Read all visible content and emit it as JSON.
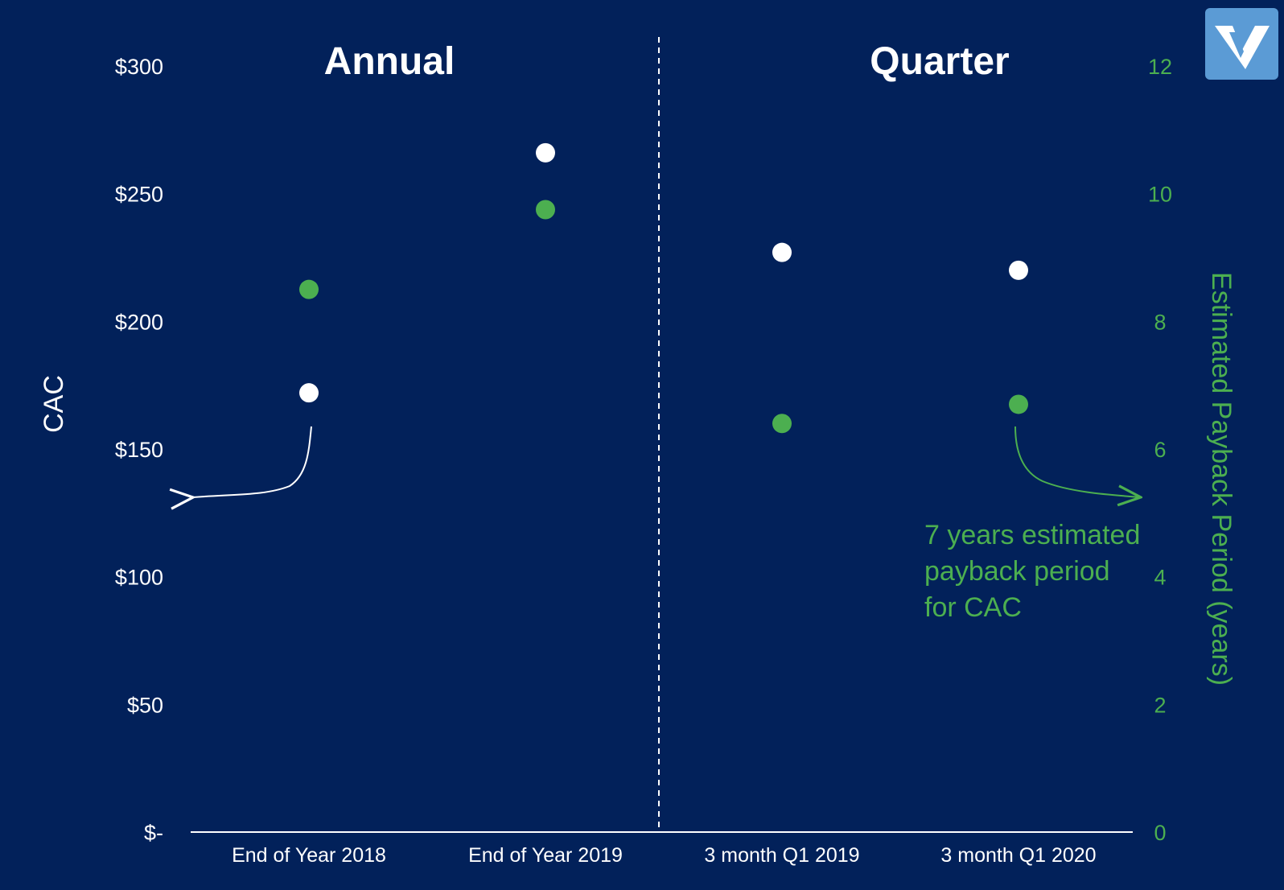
{
  "colors": {
    "background": "#02215a",
    "cac_series": "#ffffff",
    "payback_series": "#4caf50",
    "logo": "#5b9bd5"
  },
  "logo_icon": "v-logo-icon",
  "chart_data": {
    "type": "scatter",
    "categories": [
      "End of Year 2018",
      "End of Year 2019",
      "3 month Q1 2019",
      "3 month Q1 2020"
    ],
    "section_titles": [
      "Annual",
      "Quarter"
    ],
    "series": [
      {
        "axis": "left",
        "color": "#ffffff",
        "values": [
          172,
          266,
          227,
          220
        ]
      },
      {
        "axis": "right",
        "color": "#4caf50",
        "values": [
          8.5,
          9.75,
          6.4,
          6.7
        ]
      }
    ],
    "ylabel_left": "CAC",
    "ylabel_right": "Estimated Payback Period (years)",
    "yticks_left": [
      "$-",
      "$50",
      "$100",
      "$150",
      "$200",
      "$250",
      "$300"
    ],
    "yticks_right": [
      "0",
      "2",
      "4",
      "6",
      "8",
      "10",
      "12"
    ],
    "ylim_left": [
      0,
      300
    ],
    "ylim_right": [
      0,
      12
    ],
    "divider": "dashed line between Annual and Quarter sections",
    "annotation": "7 years estimated payback period for CAC"
  }
}
